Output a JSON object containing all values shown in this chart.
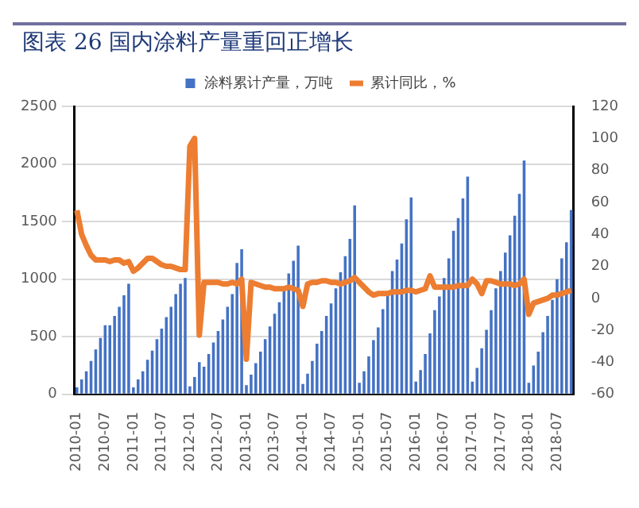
{
  "chart_data": {
    "type": "bar",
    "title": "图表 26 国内涂料产量重回正增长",
    "categories": [
      "2010-01",
      null,
      null,
      null,
      null,
      null,
      "2010-07",
      null,
      null,
      null,
      null,
      null,
      "2011-01",
      null,
      null,
      null,
      null,
      null,
      "2011-07",
      null,
      null,
      null,
      null,
      null,
      "2012-01",
      null,
      null,
      null,
      null,
      null,
      "2012-07",
      null,
      null,
      null,
      null,
      null,
      "2013-01",
      null,
      null,
      null,
      null,
      null,
      "2013-07",
      null,
      null,
      null,
      null,
      null,
      "2014-01",
      null,
      null,
      null,
      null,
      null,
      "2014-07",
      null,
      null,
      null,
      null,
      null,
      "2015-01",
      null,
      null,
      null,
      null,
      null,
      "2015-07",
      null,
      null,
      null,
      null,
      null,
      "2016-01",
      null,
      null,
      null,
      null,
      null,
      "2016-07",
      null,
      null,
      null,
      null,
      null,
      "2017-01",
      null,
      null,
      null,
      null,
      null,
      "2017-07",
      null,
      null,
      null,
      null,
      null,
      "2018-01",
      null,
      null,
      null,
      null,
      null,
      "2018-07",
      null,
      null,
      null
    ],
    "series": [
      {
        "name": "涂料累计产量，万吨",
        "color": "#4472c4",
        "values": [
          60,
          130,
          200,
          290,
          390,
          490,
          600,
          600,
          680,
          760,
          860,
          960,
          60,
          130,
          200,
          300,
          380,
          480,
          570,
          670,
          760,
          870,
          960,
          1010,
          70,
          150,
          280,
          240,
          350,
          450,
          550,
          650,
          760,
          870,
          1140,
          1260,
          80,
          170,
          270,
          370,
          480,
          590,
          700,
          800,
          900,
          1050,
          1160,
          1290,
          90,
          180,
          290,
          440,
          550,
          680,
          790,
          920,
          1060,
          1200,
          1350,
          1640,
          100,
          200,
          330,
          470,
          580,
          740,
          890,
          1070,
          1170,
          1310,
          1520,
          1710,
          110,
          210,
          350,
          530,
          730,
          850,
          1010,
          1180,
          1420,
          1530,
          1700,
          1890,
          110,
          230,
          400,
          560,
          730,
          920,
          1070,
          1230,
          1380,
          1550,
          1740,
          2030,
          100,
          250,
          370,
          540,
          680,
          820,
          1000,
          1180,
          1320,
          1600
        ]
      },
      {
        "name": "累计同比，%",
        "type": "line",
        "axis": "y2",
        "color": "#ed7d31",
        "values": [
          55,
          40,
          33,
          27,
          24,
          24,
          24,
          23,
          24,
          24,
          22,
          23,
          17,
          19,
          22,
          25,
          25,
          23,
          21,
          20,
          20,
          19,
          18,
          18,
          95,
          100,
          -23,
          10,
          10,
          10,
          10,
          9,
          9,
          10,
          9,
          12,
          -38,
          10,
          9,
          8,
          7,
          7,
          6,
          6,
          6,
          7,
          6,
          5,
          -5,
          9,
          10,
          10,
          11,
          11,
          10,
          10,
          9,
          10,
          11,
          13,
          10,
          7,
          4,
          2,
          3,
          3,
          3,
          4,
          4,
          4,
          5,
          5,
          4,
          5,
          6,
          14,
          7,
          7,
          7,
          7,
          7,
          8,
          8,
          8,
          12,
          9,
          3,
          11,
          11,
          10,
          9,
          9,
          9,
          8,
          9,
          12,
          -10,
          -3,
          -2,
          -1,
          0,
          2,
          2,
          3,
          4,
          5
        ]
      }
    ],
    "ylim": [
      0,
      2500
    ],
    "yticks": [
      0,
      500,
      1000,
      1500,
      2000,
      2500
    ],
    "y2lim": [
      -60,
      120
    ],
    "y2ticks": [
      -60,
      -40,
      -20,
      0,
      20,
      40,
      60,
      80,
      100,
      120
    ],
    "grid": "y",
    "legend": "top"
  }
}
